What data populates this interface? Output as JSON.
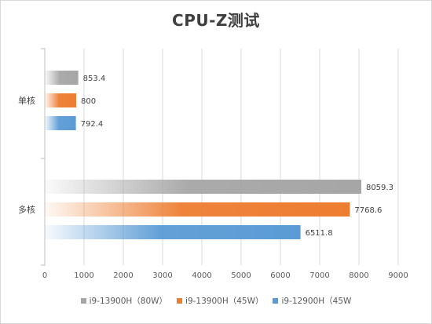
{
  "chart_data": {
    "type": "bar",
    "orientation": "horizontal",
    "title": "CPU-Z测试",
    "categories": [
      "单核",
      "多核"
    ],
    "series": [
      {
        "name": "i9-13900H（80W）",
        "values": [
          853.4,
          8059.3
        ],
        "labels": [
          "853.4",
          "8059.3"
        ],
        "color": "#a6a6a6"
      },
      {
        "name": "i9-13900H（45W）",
        "values": [
          800,
          7768.6
        ],
        "labels": [
          "800",
          "7768.6"
        ],
        "color": "#ed7d31"
      },
      {
        "name": "i9-12900H（45W",
        "values": [
          792.4,
          6511.8
        ],
        "labels": [
          "792.4",
          "6511.8"
        ],
        "color": "#5b9bd5"
      }
    ],
    "xlim": [
      0,
      9000
    ],
    "xticks": [
      "0",
      "1000",
      "2000",
      "3000",
      "4000",
      "5000",
      "6000",
      "7000",
      "8000",
      "9000"
    ],
    "grid": true,
    "legend_position": "bottom"
  }
}
